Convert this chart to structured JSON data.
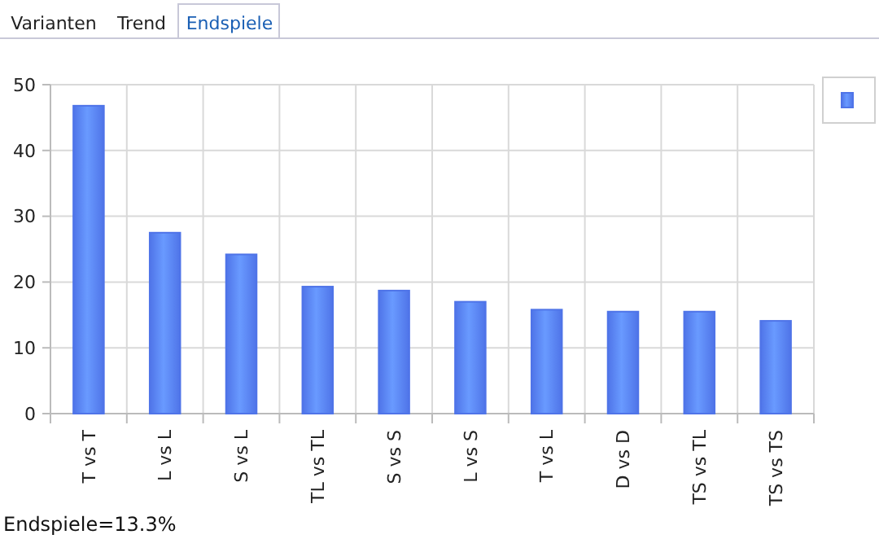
{
  "chart_data": {
    "type": "bar",
    "categories": [
      "T vs T",
      "L vs L",
      "S vs L",
      "TL vs TL",
      "S vs S",
      "L vs S",
      "T vs L",
      "D vs D",
      "TS vs TL",
      "TS vs TS"
    ],
    "values": [
      46.8,
      27.5,
      24.2,
      19.3,
      18.7,
      17.0,
      15.8,
      15.5,
      15.5,
      14.1
    ],
    "color": "#4f74e8",
    "ylim": [
      0,
      50
    ],
    "yticks": [
      0,
      10,
      20,
      30,
      40,
      50
    ],
    "grid": true,
    "annotations": [
      "Varianten",
      "Trend",
      "Endspiele",
      "Endspiele=13.3%"
    ]
  }
}
